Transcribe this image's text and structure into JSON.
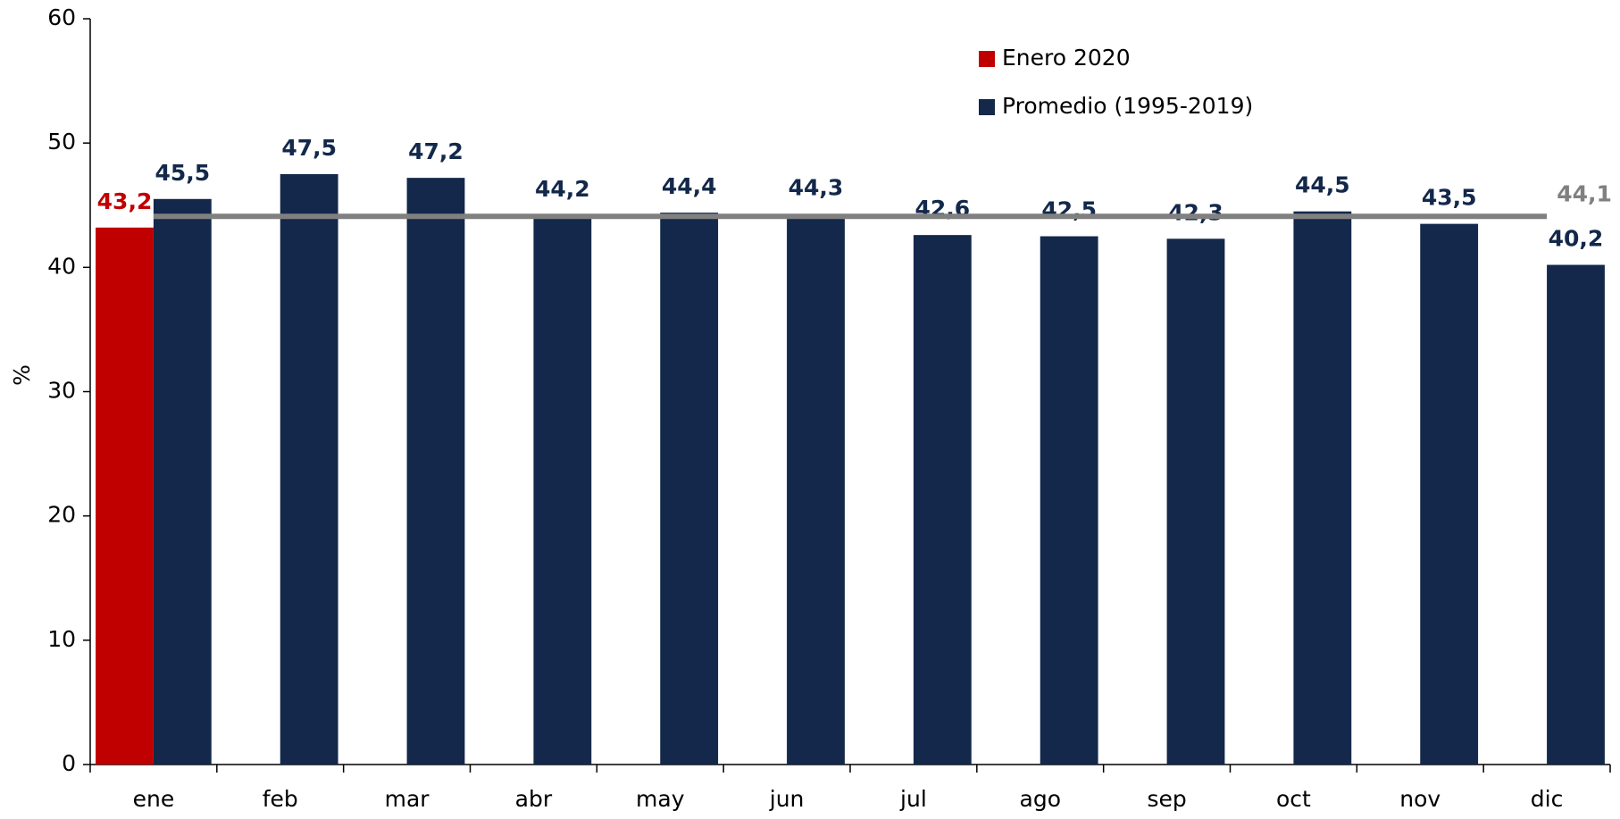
{
  "chart_data": {
    "type": "bar",
    "y_label": "%",
    "categories": [
      "ene",
      "feb",
      "mar",
      "abr",
      "may",
      "jun",
      "jul",
      "ago",
      "sep",
      "oct",
      "nov",
      "dic"
    ],
    "series": [
      {
        "name": "Enero 2020",
        "color": "#c00000",
        "values": [
          43.2,
          null,
          null,
          null,
          null,
          null,
          null,
          null,
          null,
          null,
          null,
          null
        ],
        "value_labels": [
          "43,2",
          null,
          null,
          null,
          null,
          null,
          null,
          null,
          null,
          null,
          null,
          null
        ]
      },
      {
        "name": "Promedio (1995-2019)",
        "color": "#13284a",
        "values": [
          45.5,
          47.5,
          47.2,
          44.2,
          44.4,
          44.3,
          42.6,
          42.5,
          42.3,
          44.5,
          43.5,
          40.2
        ],
        "value_labels": [
          "45,5",
          "47,5",
          "47,2",
          "44,2",
          "44,4",
          "44,3",
          "42,6",
          "42,5",
          "42,3",
          "44,5",
          "43,5",
          "40,2"
        ]
      }
    ],
    "reference_line": {
      "value": 44.1,
      "value_label": "44,1",
      "color": "#808080"
    },
    "ylim": [
      0,
      60
    ],
    "yticks": [
      0,
      10,
      20,
      30,
      40,
      50,
      60
    ]
  }
}
